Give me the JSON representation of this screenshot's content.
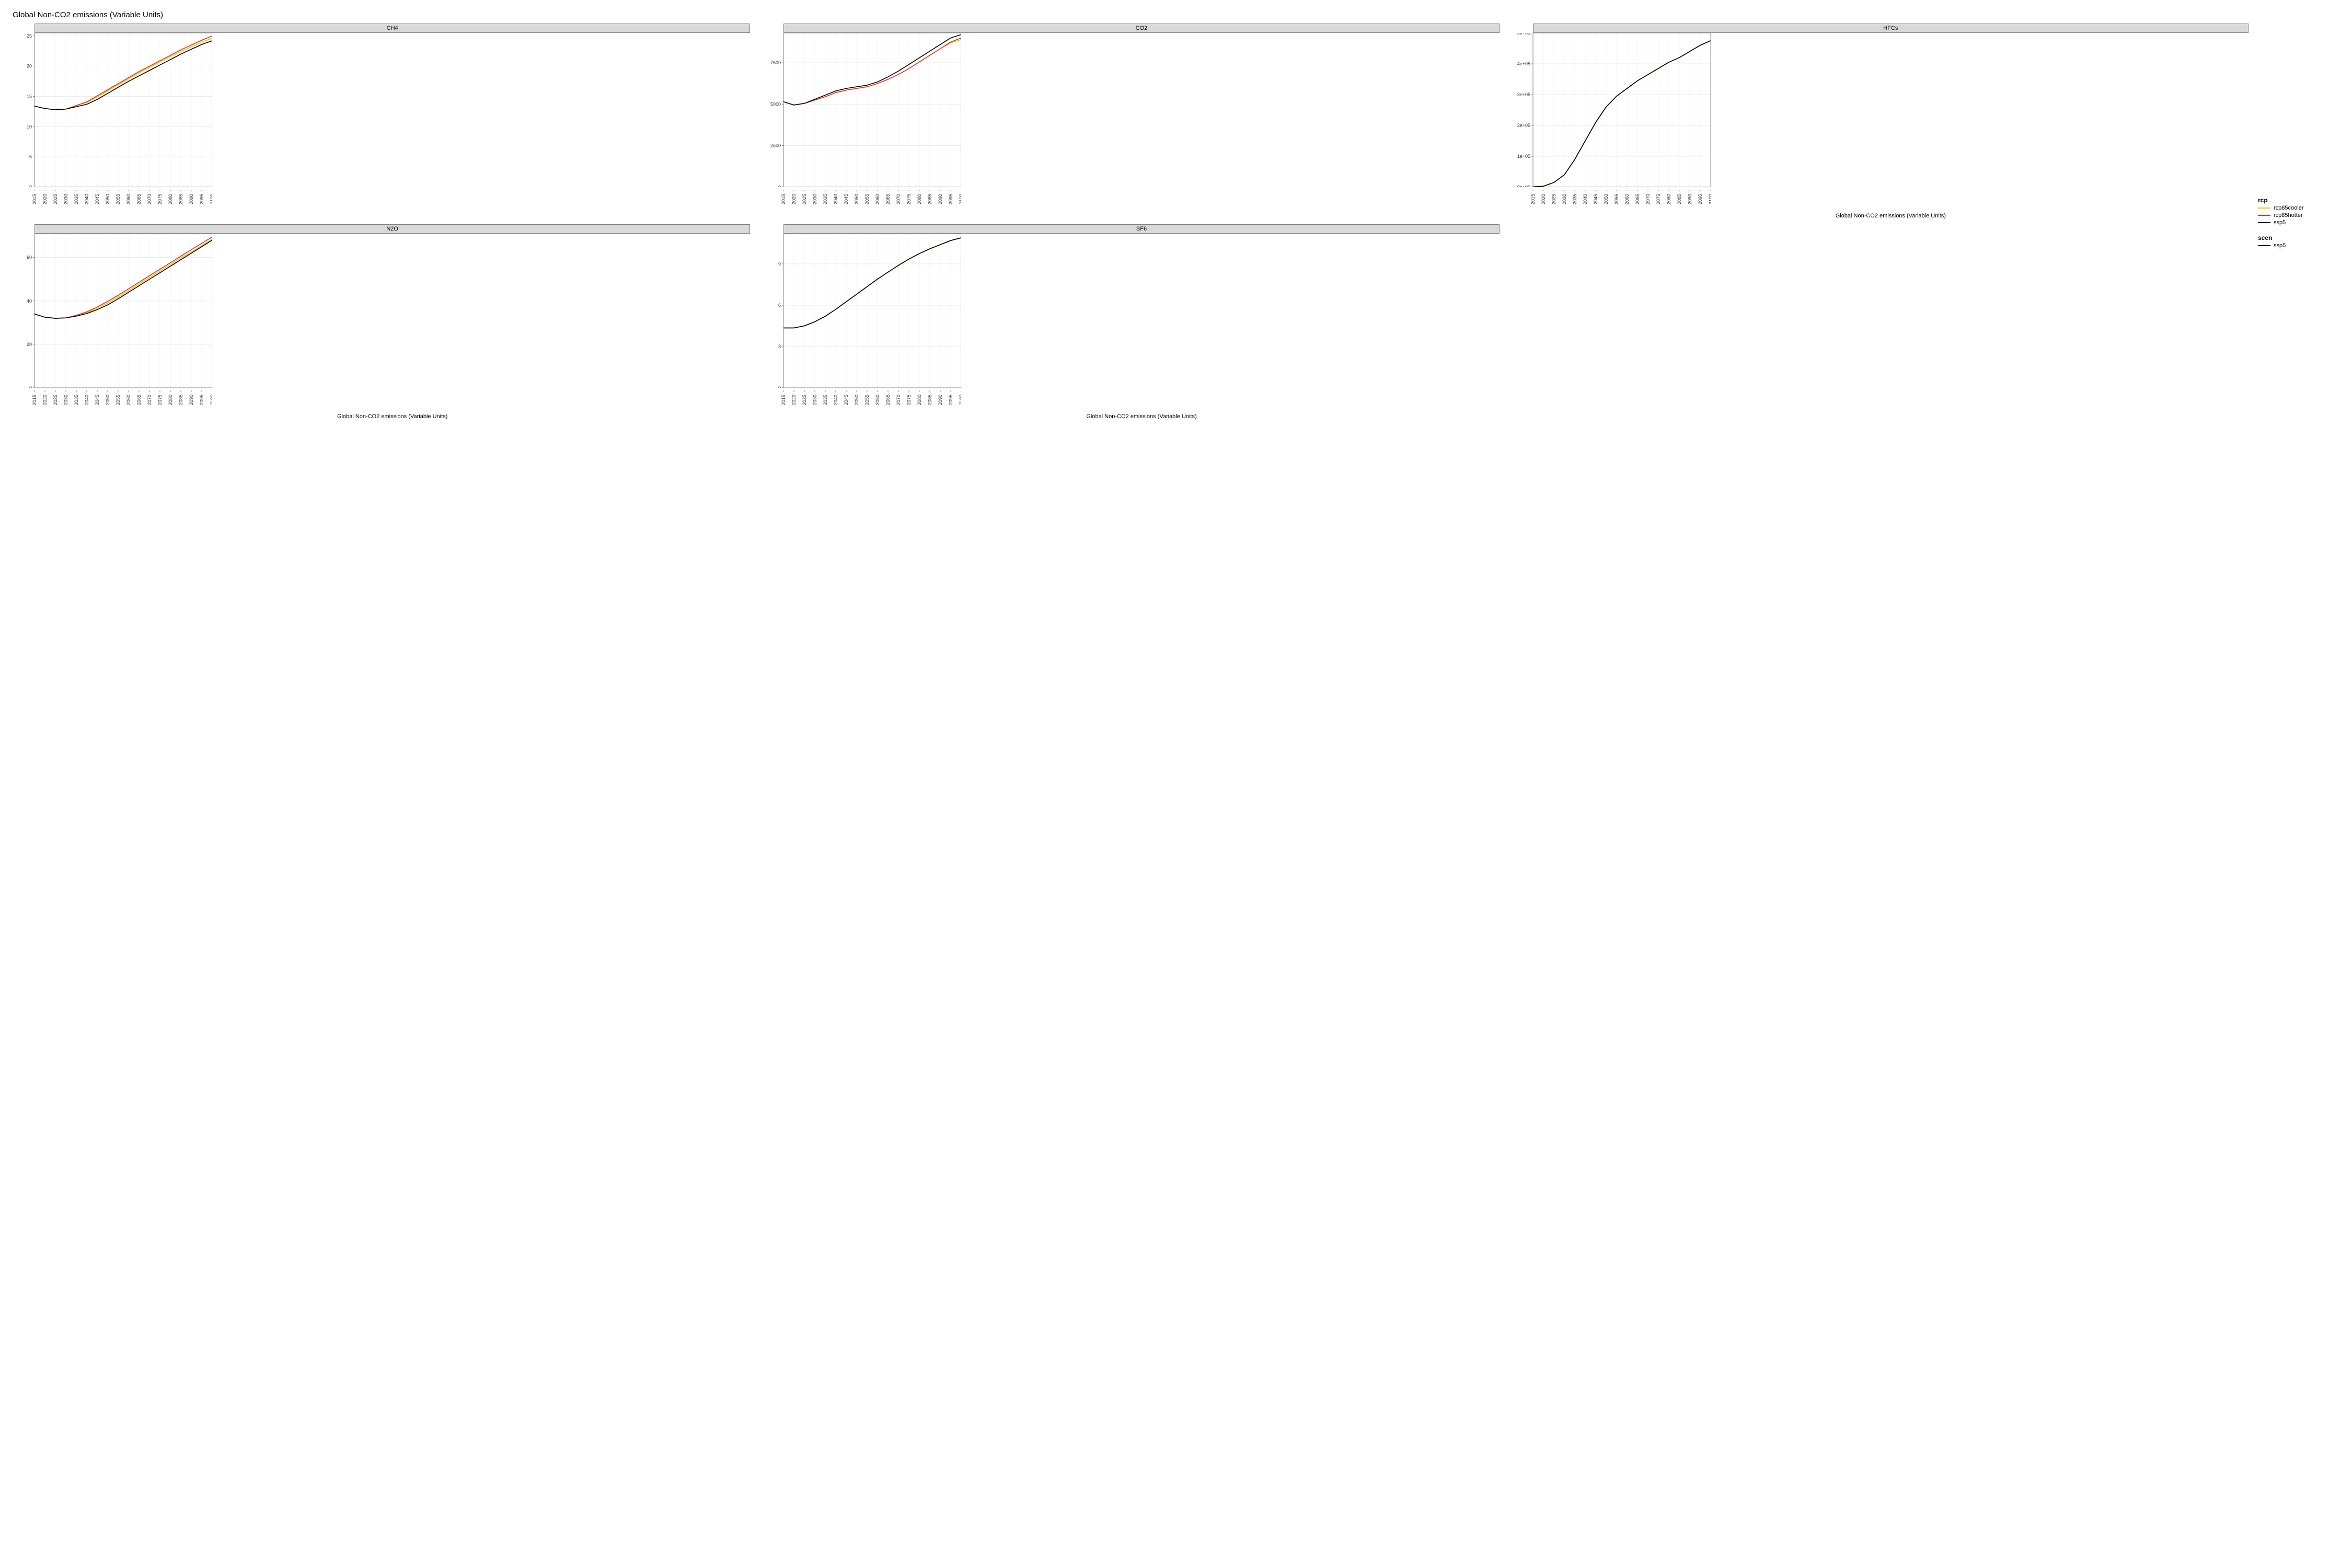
{
  "title": "Global Non-CO2 emissions (Variable Units)",
  "axis_label": "Global Non-CO2 emissions (Variable Units)",
  "background_color": "#ffffff",
  "panel_border_color": "#7f7f7f",
  "strip_bg": "#d9d9d9",
  "grid_minor_color": "#f0f0f0",
  "grid_major_color": "#e6e6e6",
  "tick_color": "#333333",
  "tick_fontsize": 9,
  "strip_fontsize": 11,
  "title_fontsize": 15,
  "line_width": 1.6,
  "x_ticks": [
    2015,
    2020,
    2025,
    2030,
    2035,
    2040,
    2045,
    2050,
    2055,
    2060,
    2065,
    2070,
    2075,
    2080,
    2085,
    2090,
    2095,
    2100
  ],
  "legend": {
    "rcp_title": "rcp",
    "scen_title": "scen",
    "items_rcp": [
      {
        "label": "rcp85cooler",
        "color": "#f0c000"
      },
      {
        "label": "rcp85hotter",
        "color": "#e03020"
      },
      {
        "label": "ssp5",
        "color": "#000000"
      }
    ],
    "items_scen": [
      {
        "label": "ssp5",
        "color": "#000000"
      }
    ]
  },
  "series_colors": {
    "rcp85cooler": "#f0c000",
    "rcp85hotter": "#e03020",
    "ssp5": "#000000"
  },
  "panels": [
    {
      "name": "CH4",
      "ylim": [
        0,
        25.5
      ],
      "yticks": [
        0,
        5,
        10,
        15,
        20,
        25
      ],
      "yticklabels": [
        "0",
        "5",
        "10",
        "15",
        "20",
        "25"
      ],
      "series": {
        "ssp5": [
          13.4,
          13.0,
          12.8,
          12.9,
          13.3,
          13.7,
          14.5,
          15.5,
          16.5,
          17.5,
          18.4,
          19.3,
          20.2,
          21.1,
          22.0,
          22.8,
          23.6,
          24.2
        ],
        "rcp85cooler": [
          13.4,
          13.0,
          12.8,
          12.9,
          13.5,
          14.0,
          14.9,
          15.9,
          16.9,
          17.9,
          18.9,
          19.8,
          20.7,
          21.6,
          22.4,
          23.2,
          24.0,
          24.6
        ],
        "rcp85hotter": [
          13.4,
          13.0,
          12.8,
          12.9,
          13.5,
          14.1,
          15.1,
          16.1,
          17.1,
          18.1,
          19.1,
          20.0,
          20.9,
          21.8,
          22.7,
          23.5,
          24.3,
          25.0
        ]
      }
    },
    {
      "name": "CO2",
      "ylim": [
        0,
        9300
      ],
      "yticks": [
        0,
        2500,
        5000,
        7500
      ],
      "yticklabels": [
        "0",
        "2500",
        "5000",
        "7500"
      ],
      "series": {
        "ssp5": [
          5150,
          4950,
          5050,
          5300,
          5550,
          5800,
          5950,
          6050,
          6150,
          6350,
          6650,
          7000,
          7400,
          7800,
          8200,
          8600,
          9000,
          9200
        ],
        "rcp85cooler": [
          5150,
          4950,
          5050,
          5250,
          5450,
          5700,
          5850,
          5950,
          6050,
          6250,
          6500,
          6800,
          7150,
          7550,
          7950,
          8350,
          8700,
          8900
        ],
        "rcp85hotter": [
          5150,
          4950,
          5050,
          5250,
          5450,
          5700,
          5850,
          5950,
          6050,
          6250,
          6500,
          6800,
          7150,
          7550,
          7950,
          8350,
          8750,
          9000
        ]
      }
    },
    {
      "name": "HFCs",
      "ylim": [
        0,
        500000
      ],
      "yticks": [
        0,
        100000,
        200000,
        300000,
        400000,
        500000
      ],
      "yticklabels": [
        "0e+00",
        "1e+05",
        "2e+05",
        "3e+05",
        "4e+05",
        "5e+05"
      ],
      "series": {
        "ssp5": [
          1000,
          3000,
          15000,
          40000,
          90000,
          150000,
          210000,
          260000,
          295000,
          320000,
          345000,
          365000,
          385000,
          405000,
          420000,
          440000,
          460000,
          475000
        ],
        "rcp85cooler": [
          1000,
          3000,
          15000,
          40000,
          90000,
          150000,
          210000,
          260000,
          295000,
          320000,
          345000,
          365000,
          385000,
          405000,
          420000,
          440000,
          460000,
          475000
        ],
        "rcp85hotter": [
          1000,
          3000,
          15000,
          40000,
          90000,
          150000,
          210000,
          260000,
          295000,
          320000,
          345000,
          365000,
          385000,
          405000,
          420000,
          440000,
          460000,
          475000
        ]
      }
    },
    {
      "name": "N2O",
      "ylim": [
        0,
        71
      ],
      "yticks": [
        0,
        20,
        40,
        60
      ],
      "yticklabels": [
        "0",
        "20",
        "40",
        "60"
      ],
      "series": {
        "ssp5": [
          34.0,
          32.5,
          32.0,
          32.2,
          33.0,
          34.2,
          36.0,
          38.2,
          41.0,
          44.0,
          47.0,
          50.0,
          53.0,
          56.0,
          59.0,
          62.0,
          65.0,
          68.0
        ],
        "rcp85cooler": [
          34.0,
          32.5,
          32.0,
          32.2,
          33.2,
          34.6,
          36.6,
          39.0,
          41.8,
          44.8,
          47.8,
          50.8,
          53.8,
          56.8,
          59.8,
          62.6,
          65.4,
          68.5
        ],
        "rcp85hotter": [
          34.0,
          32.5,
          32.0,
          32.2,
          33.4,
          35.0,
          37.2,
          39.8,
          42.6,
          45.6,
          48.6,
          51.6,
          54.6,
          57.6,
          60.6,
          63.6,
          66.5,
          69.5
        ]
      }
    },
    {
      "name": "SF6",
      "ylim": [
        0,
        11.2
      ],
      "yticks": [
        0,
        3,
        6,
        9
      ],
      "yticklabels": [
        "0",
        "3",
        "6",
        "9"
      ],
      "series": {
        "ssp5": [
          4.35,
          4.35,
          4.5,
          4.8,
          5.2,
          5.7,
          6.25,
          6.8,
          7.35,
          7.9,
          8.4,
          8.9,
          9.35,
          9.75,
          10.1,
          10.4,
          10.7,
          10.9
        ],
        "rcp85cooler": [
          4.35,
          4.35,
          4.5,
          4.8,
          5.2,
          5.7,
          6.25,
          6.8,
          7.35,
          7.9,
          8.4,
          8.9,
          9.35,
          9.75,
          10.1,
          10.4,
          10.7,
          10.9
        ],
        "rcp85hotter": [
          4.35,
          4.35,
          4.5,
          4.8,
          5.2,
          5.7,
          6.25,
          6.8,
          7.35,
          7.9,
          8.4,
          8.9,
          9.35,
          9.75,
          10.1,
          10.4,
          10.7,
          10.9
        ]
      }
    }
  ],
  "layout": {
    "cols": 3,
    "rows": 2,
    "panel_inner_w": 340,
    "panel_inner_h": 295,
    "left_axis_w": 46,
    "bottom_axis_h": 42
  }
}
